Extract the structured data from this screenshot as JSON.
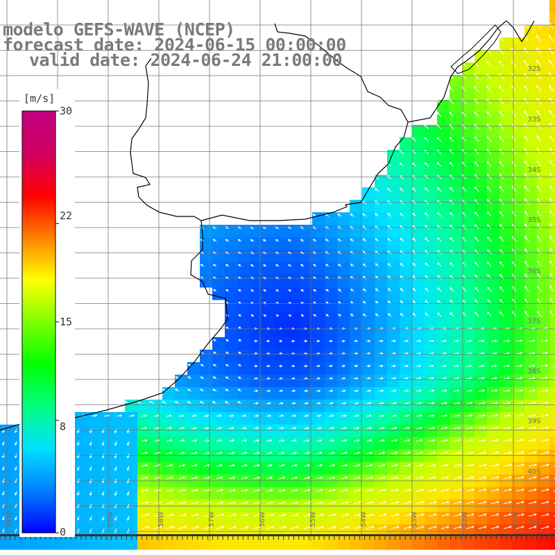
{
  "header": {
    "line1": "modelo GEFS-WAVE (NCEP)",
    "line2": "forecast date: 2024-06-15 00:00:00",
    "line3": "valid date: 2024-06-24 21:00:00"
  },
  "colorbar": {
    "unit": "[m/s]",
    "min": 0,
    "max": 30,
    "tick_labels": [
      "30",
      "22",
      "15",
      "8",
      "0"
    ],
    "tick_values": [
      30,
      22,
      15,
      8,
      0
    ],
    "colors": [
      "#0000ff",
      "#0080ff",
      "#00e0ff",
      "#00ff80",
      "#00ff00",
      "#80ff00",
      "#ffff00",
      "#ff8000",
      "#ff0000",
      "#d00060",
      "#c00080"
    ]
  },
  "map": {
    "lat_labels": [
      "32S",
      "33S",
      "34S",
      "35S",
      "36S",
      "37S",
      "38S",
      "39S",
      "40S",
      "41S"
    ],
    "lon_labels": [
      "61W",
      "60W",
      "59W",
      "58W",
      "57W",
      "56W",
      "55W",
      "54W",
      "53W",
      "52W",
      "51W"
    ],
    "field": "wind speed"
  }
}
